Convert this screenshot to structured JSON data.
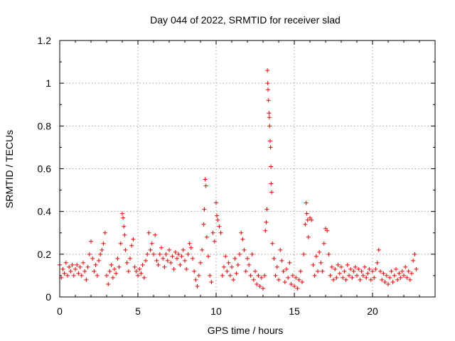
{
  "chart_data": {
    "type": "scatter",
    "title": "Day 044 of 2022, SRMTID for receiver slad",
    "xlabel": "GPS time / hours",
    "ylabel": "SRMTID / TECUs",
    "xlim": [
      0,
      24
    ],
    "ylim": [
      0,
      1.2
    ],
    "grid": true,
    "marker": "plus",
    "series_color": "#ff0000",
    "x_ticks": [
      {
        "value": 0,
        "label": "0"
      },
      {
        "value": 5,
        "label": "5"
      },
      {
        "value": 10,
        "label": "10"
      },
      {
        "value": 15,
        "label": "15"
      },
      {
        "value": 20,
        "label": "20"
      }
    ],
    "y_ticks": [
      {
        "value": 0,
        "label": "0"
      },
      {
        "value": 0.2,
        "label": "0.2"
      },
      {
        "value": 0.4,
        "label": "0.4"
      },
      {
        "value": 0.6,
        "label": "0.6"
      },
      {
        "value": 0.8,
        "label": "0.8"
      },
      {
        "value": 1.0,
        "label": "1"
      },
      {
        "value": 1.2,
        "label": "1.2"
      }
    ],
    "series": [
      {
        "name": "SRMTID",
        "points": [
          [
            0.0,
            0.15
          ],
          [
            0.1,
            0.09
          ],
          [
            0.2,
            0.13
          ],
          [
            0.3,
            0.11
          ],
          [
            0.4,
            0.16
          ],
          [
            0.5,
            0.1
          ],
          [
            0.6,
            0.14
          ],
          [
            0.7,
            0.12
          ],
          [
            0.8,
            0.15
          ],
          [
            0.9,
            0.1
          ],
          [
            1.0,
            0.13
          ],
          [
            1.1,
            0.15
          ],
          [
            1.2,
            0.11
          ],
          [
            1.3,
            0.14
          ],
          [
            1.4,
            0.1
          ],
          [
            1.5,
            0.16
          ],
          [
            1.6,
            0.12
          ],
          [
            1.7,
            0.08
          ],
          [
            1.8,
            0.14
          ],
          [
            1.9,
            0.2
          ],
          [
            2.0,
            0.26
          ],
          [
            2.1,
            0.18
          ],
          [
            2.2,
            0.12
          ],
          [
            2.3,
            0.15
          ],
          [
            2.4,
            0.1
          ],
          [
            2.5,
            0.17
          ],
          [
            2.6,
            0.2
          ],
          [
            2.7,
            0.22
          ],
          [
            2.8,
            0.25
          ],
          [
            2.9,
            0.3
          ],
          [
            3.0,
            0.1
          ],
          [
            3.1,
            0.06
          ],
          [
            3.2,
            0.12
          ],
          [
            3.3,
            0.15
          ],
          [
            3.4,
            0.09
          ],
          [
            3.5,
            0.13
          ],
          [
            3.6,
            0.11
          ],
          [
            3.7,
            0.18
          ],
          [
            3.8,
            0.14
          ],
          [
            3.9,
            0.25
          ],
          [
            4.0,
            0.39
          ],
          [
            4.05,
            0.37
          ],
          [
            4.1,
            0.33
          ],
          [
            4.15,
            0.29
          ],
          [
            4.2,
            0.22
          ],
          [
            4.3,
            0.16
          ],
          [
            4.4,
            0.12
          ],
          [
            4.5,
            0.18
          ],
          [
            4.6,
            0.24
          ],
          [
            4.7,
            0.27
          ],
          [
            4.8,
            0.14
          ],
          [
            4.9,
            0.12
          ],
          [
            5.0,
            0.1
          ],
          [
            5.1,
            0.13
          ],
          [
            5.2,
            0.11
          ],
          [
            5.3,
            0.15
          ],
          [
            5.4,
            0.09
          ],
          [
            5.5,
            0.17
          ],
          [
            5.6,
            0.2
          ],
          [
            5.7,
            0.3
          ],
          [
            5.8,
            0.22
          ],
          [
            5.9,
            0.25
          ],
          [
            6.0,
            0.2
          ],
          [
            6.1,
            0.29
          ],
          [
            6.2,
            0.17
          ],
          [
            6.3,
            0.15
          ],
          [
            6.4,
            0.2
          ],
          [
            6.5,
            0.23
          ],
          [
            6.6,
            0.18
          ],
          [
            6.7,
            0.14
          ],
          [
            6.8,
            0.2
          ],
          [
            6.9,
            0.17
          ],
          [
            7.0,
            0.22
          ],
          [
            7.1,
            0.16
          ],
          [
            7.2,
            0.19
          ],
          [
            7.3,
            0.13
          ],
          [
            7.4,
            0.21
          ],
          [
            7.5,
            0.18
          ],
          [
            7.6,
            0.2
          ],
          [
            7.7,
            0.15
          ],
          [
            7.8,
            0.19
          ],
          [
            7.9,
            0.22
          ],
          [
            8.0,
            0.17
          ],
          [
            8.1,
            0.13
          ],
          [
            8.2,
            0.2
          ],
          [
            8.3,
            0.25
          ],
          [
            8.4,
            0.23
          ],
          [
            8.5,
            0.18
          ],
          [
            8.6,
            0.12
          ],
          [
            8.7,
            0.08
          ],
          [
            8.8,
            0.05
          ],
          [
            8.9,
            0.1
          ],
          [
            9.0,
            0.16
          ],
          [
            9.1,
            0.22
          ],
          [
            9.2,
            0.34
          ],
          [
            9.25,
            0.41
          ],
          [
            9.3,
            0.55
          ],
          [
            9.35,
            0.52
          ],
          [
            9.4,
            0.28
          ],
          [
            9.5,
            0.19
          ],
          [
            9.6,
            0.1
          ],
          [
            9.7,
            0.07
          ],
          [
            9.8,
            0.3
          ],
          [
            9.9,
            0.26
          ],
          [
            10.0,
            0.44
          ],
          [
            10.05,
            0.38
          ],
          [
            10.1,
            0.36
          ],
          [
            10.2,
            0.33
          ],
          [
            10.3,
            0.3
          ],
          [
            10.4,
            0.1
          ],
          [
            10.5,
            0.14
          ],
          [
            10.6,
            0.19
          ],
          [
            10.7,
            0.12
          ],
          [
            10.8,
            0.16
          ],
          [
            10.9,
            0.1
          ],
          [
            11.0,
            0.14
          ],
          [
            11.1,
            0.08
          ],
          [
            11.2,
            0.18
          ],
          [
            11.3,
            0.11
          ],
          [
            11.4,
            0.15
          ],
          [
            11.5,
            0.2
          ],
          [
            11.6,
            0.3
          ],
          [
            11.7,
            0.27
          ],
          [
            11.8,
            0.22
          ],
          [
            11.9,
            0.12
          ],
          [
            12.0,
            0.18
          ],
          [
            12.1,
            0.15
          ],
          [
            12.2,
            0.1
          ],
          [
            12.3,
            0.2
          ],
          [
            12.4,
            0.08
          ],
          [
            12.5,
            0.12
          ],
          [
            12.6,
            0.06
          ],
          [
            12.7,
            0.1
          ],
          [
            12.8,
            0.05
          ],
          [
            12.9,
            0.09
          ],
          [
            13.0,
            0.04
          ],
          [
            13.1,
            0.1
          ],
          [
            13.15,
            0.31
          ],
          [
            13.2,
            0.35
          ],
          [
            13.25,
            0.41
          ],
          [
            13.28,
            1.06
          ],
          [
            13.3,
            1.0
          ],
          [
            13.32,
            0.97
          ],
          [
            13.35,
            0.92
          ],
          [
            13.38,
            0.86
          ],
          [
            13.4,
            0.84
          ],
          [
            13.42,
            0.8
          ],
          [
            13.45,
            0.73
          ],
          [
            13.48,
            0.7
          ],
          [
            13.5,
            0.61
          ],
          [
            13.52,
            0.53
          ],
          [
            13.55,
            0.49
          ],
          [
            13.6,
            0.25
          ],
          [
            13.7,
            0.18
          ],
          [
            13.8,
            0.1
          ],
          [
            13.9,
            0.14
          ],
          [
            14.0,
            0.08
          ],
          [
            14.1,
            0.22
          ],
          [
            14.2,
            0.17
          ],
          [
            14.3,
            0.12
          ],
          [
            14.4,
            0.07
          ],
          [
            14.5,
            0.13
          ],
          [
            14.6,
            0.09
          ],
          [
            14.7,
            0.16
          ],
          [
            14.8,
            0.06
          ],
          [
            14.9,
            0.1
          ],
          [
            15.0,
            0.05
          ],
          [
            15.1,
            0.09
          ],
          [
            15.2,
            0.04
          ],
          [
            15.3,
            0.08
          ],
          [
            15.4,
            0.12
          ],
          [
            15.5,
            0.07
          ],
          [
            15.6,
            0.2
          ],
          [
            15.7,
            0.34
          ],
          [
            15.75,
            0.44
          ],
          [
            15.8,
            0.39
          ],
          [
            15.85,
            0.36
          ],
          [
            15.9,
            0.28
          ],
          [
            16.0,
            0.37
          ],
          [
            16.1,
            0.36
          ],
          [
            16.2,
            0.15
          ],
          [
            16.3,
            0.1
          ],
          [
            16.4,
            0.19
          ],
          [
            16.5,
            0.12
          ],
          [
            16.6,
            0.21
          ],
          [
            16.7,
            0.16
          ],
          [
            16.8,
            0.12
          ],
          [
            16.9,
            0.25
          ],
          [
            17.0,
            0.32
          ],
          [
            17.1,
            0.31
          ],
          [
            17.2,
            0.2
          ],
          [
            17.3,
            0.1
          ],
          [
            17.4,
            0.14
          ],
          [
            17.5,
            0.08
          ],
          [
            17.6,
            0.13
          ],
          [
            17.7,
            0.09
          ],
          [
            17.8,
            0.15
          ],
          [
            17.9,
            0.11
          ],
          [
            18.0,
            0.14
          ],
          [
            18.1,
            0.09
          ],
          [
            18.2,
            0.12
          ],
          [
            18.3,
            0.08
          ],
          [
            18.4,
            0.15
          ],
          [
            18.5,
            0.1
          ],
          [
            18.6,
            0.13
          ],
          [
            18.7,
            0.09
          ],
          [
            18.8,
            0.12
          ],
          [
            18.9,
            0.14
          ],
          [
            19.0,
            0.1
          ],
          [
            19.1,
            0.13
          ],
          [
            19.2,
            0.08
          ],
          [
            19.3,
            0.12
          ],
          [
            19.4,
            0.1
          ],
          [
            19.5,
            0.14
          ],
          [
            19.6,
            0.09
          ],
          [
            19.7,
            0.11
          ],
          [
            19.8,
            0.13
          ],
          [
            19.9,
            0.08
          ],
          [
            20.0,
            0.12
          ],
          [
            20.1,
            0.09
          ],
          [
            20.2,
            0.13
          ],
          [
            20.3,
            0.16
          ],
          [
            20.4,
            0.22
          ],
          [
            20.5,
            0.12
          ],
          [
            20.6,
            0.08
          ],
          [
            20.7,
            0.11
          ],
          [
            20.8,
            0.07
          ],
          [
            20.9,
            0.1
          ],
          [
            21.0,
            0.06
          ],
          [
            21.1,
            0.09
          ],
          [
            21.2,
            0.12
          ],
          [
            21.3,
            0.07
          ],
          [
            21.4,
            0.1
          ],
          [
            21.5,
            0.13
          ],
          [
            21.6,
            0.08
          ],
          [
            21.7,
            0.11
          ],
          [
            21.8,
            0.09
          ],
          [
            21.9,
            0.12
          ],
          [
            22.0,
            0.1
          ],
          [
            22.1,
            0.14
          ],
          [
            22.2,
            0.09
          ],
          [
            22.3,
            0.12
          ],
          [
            22.4,
            0.08
          ],
          [
            22.5,
            0.11
          ],
          [
            22.6,
            0.17
          ],
          [
            22.7,
            0.2
          ],
          [
            22.8,
            0.13
          ]
        ]
      }
    ]
  }
}
